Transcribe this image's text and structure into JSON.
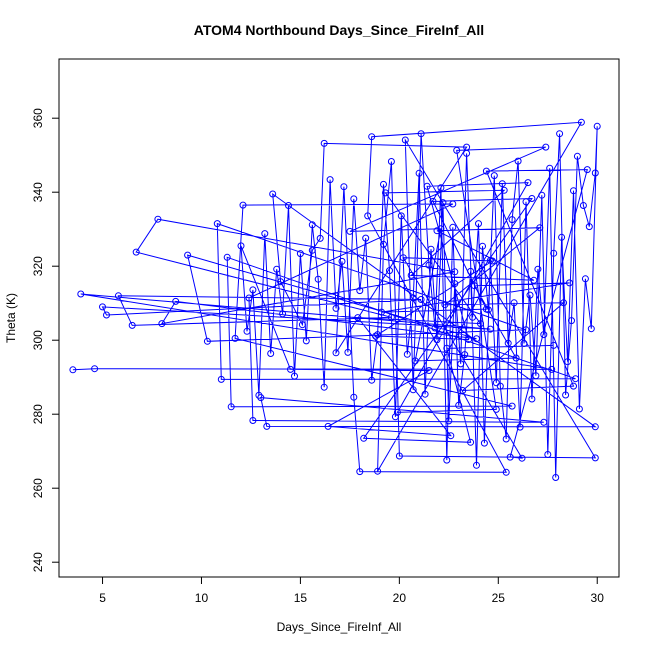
{
  "chart_data": {
    "type": "scatter",
    "style": "points-connected-by-lines",
    "title": "ATOM4 Northbound Days_Since_FireInf_All",
    "xlabel": "Days_Since_FireInf_All",
    "ylabel": "Theta (K)",
    "xlim": [
      2.8,
      31.1
    ],
    "ylim": [
      236,
      376
    ],
    "xticks": [
      5,
      10,
      15,
      20,
      25,
      30
    ],
    "yticks": [
      240,
      260,
      280,
      300,
      320,
      340,
      360
    ],
    "grid": false,
    "legend": "none",
    "colors": {
      "series": "#0000ff",
      "axis": "#000000"
    },
    "series": [
      {
        "points": [
          [
            3.5,
            292
          ],
          [
            4.6,
            292.3
          ],
          [
            27.7,
            292.1
          ],
          [
            3.9,
            312.5
          ],
          [
            24.6,
            303
          ],
          [
            5.0,
            309
          ],
          [
            5.2,
            306.8
          ],
          [
            21.1,
            311
          ],
          [
            5.8,
            312
          ],
          [
            6.5,
            304
          ],
          [
            19.6,
            306.2
          ],
          [
            6.7,
            323.8
          ],
          [
            7.8,
            332.7
          ],
          [
            22.8,
            318.5
          ],
          [
            8.0,
            304.5
          ],
          [
            8.7,
            310.5
          ],
          [
            23.9,
            300.4
          ],
          [
            9.3,
            323
          ],
          [
            10.3,
            299.7
          ],
          [
            26.4,
            302.8
          ],
          [
            10.8,
            331.5
          ],
          [
            11.0,
            289.4
          ],
          [
            28.9,
            289.6
          ],
          [
            11.3,
            322.4
          ],
          [
            11.5,
            282
          ],
          [
            25.7,
            282.2
          ],
          [
            11.7,
            300.5
          ],
          [
            12.1,
            336.5
          ],
          [
            22.7,
            336.8
          ],
          [
            12.4,
            311.4
          ],
          [
            12.6,
            278.3
          ],
          [
            27.3,
            277.8
          ],
          [
            13.0,
            284.5
          ],
          [
            13.3,
            276.7
          ],
          [
            29.9,
            276.6
          ],
          [
            13.6,
            339.5
          ],
          [
            14.0,
            315.8
          ],
          [
            15.1,
            304.2
          ],
          [
            15.6,
            324.3
          ],
          [
            16.0,
            327.5
          ],
          [
            16.2,
            353.2
          ],
          [
            23.4,
            352.2
          ],
          [
            16.8,
            296.6
          ],
          [
            17.2,
            341.5
          ],
          [
            17.7,
            284.6
          ],
          [
            18.0,
            264.5
          ],
          [
            25.4,
            264.3
          ],
          [
            18.4,
            333.6
          ],
          [
            18.6,
            355
          ],
          [
            29.2,
            358.9
          ],
          [
            18.9,
            264.6
          ],
          [
            19.2,
            325.9
          ],
          [
            19.6,
            348.3
          ],
          [
            20.0,
            268.7
          ],
          [
            29.9,
            268.2
          ],
          [
            20.3,
            354.1
          ],
          [
            20.7,
            286.6
          ],
          [
            21.1,
            355.8
          ],
          [
            21.5,
            320.3
          ],
          [
            21.8,
            303.3
          ],
          [
            22.1,
            341.2
          ],
          [
            22.4,
            267.6
          ],
          [
            22.7,
            330.5
          ],
          [
            23.0,
            282.4
          ],
          [
            23.3,
            296.1
          ],
          [
            23.6,
            318.6
          ],
          [
            23.9,
            266.2
          ],
          [
            24.2,
            325.4
          ],
          [
            24.5,
            308.2
          ],
          [
            24.8,
            344.5
          ],
          [
            25.1,
            287.6
          ],
          [
            25.4,
            273.3
          ],
          [
            25.7,
            332.6
          ],
          [
            26.0,
            348.4
          ],
          [
            26.3,
            299.1
          ],
          [
            26.6,
            312.2
          ],
          [
            26.9,
            290.4
          ],
          [
            27.2,
            339.2
          ],
          [
            27.5,
            269.1
          ],
          [
            27.8,
            323.5
          ],
          [
            28.1,
            355.8
          ],
          [
            28.4,
            285.2
          ],
          [
            28.7,
            305.3
          ],
          [
            29.0,
            349.7
          ],
          [
            29.3,
            336.4
          ],
          [
            29.6,
            330.7
          ],
          [
            29.9,
            345.2
          ],
          [
            30.0,
            357.8
          ],
          [
            29.7,
            303.1
          ],
          [
            29.4,
            316.6
          ],
          [
            29.1,
            281.4
          ],
          [
            28.8,
            340.4
          ],
          [
            28.5,
            294.2
          ],
          [
            28.2,
            327.8
          ],
          [
            27.9,
            262.9
          ],
          [
            27.6,
            346.5
          ],
          [
            27.3,
            301.5
          ],
          [
            27.0,
            319.2
          ],
          [
            26.7,
            284.1
          ],
          [
            26.4,
            337.4
          ],
          [
            26.1,
            276.5
          ],
          [
            25.8,
            310.1
          ],
          [
            25.5,
            299.2
          ],
          [
            25.2,
            342.3
          ],
          [
            24.9,
            288.5
          ],
          [
            24.6,
            321.6
          ],
          [
            24.3,
            272.2
          ],
          [
            24.0,
            331.5
          ],
          [
            23.7,
            306.2
          ],
          [
            23.4,
            350.5
          ],
          [
            23.1,
            293.6
          ],
          [
            22.8,
            315.3
          ],
          [
            22.5,
            278.2
          ],
          [
            22.2,
            337.2
          ],
          [
            21.9,
            300.1
          ],
          [
            21.6,
            324.6
          ],
          [
            21.3,
            285.4
          ],
          [
            21.0,
            345.1
          ],
          [
            20.7,
            311.4
          ],
          [
            20.4,
            296.2
          ],
          [
            20.1,
            333.6
          ],
          [
            19.8,
            279.3
          ],
          [
            19.5,
            318.8
          ],
          [
            19.2,
            342.1
          ],
          [
            18.9,
            301.5
          ],
          [
            18.6,
            289.2
          ],
          [
            18.3,
            327.6
          ],
          [
            18.0,
            313.4
          ],
          [
            17.7,
            338.2
          ],
          [
            17.4,
            296.7
          ],
          [
            17.1,
            321.3
          ],
          [
            16.8,
            308.6
          ],
          [
            16.5,
            343.4
          ],
          [
            16.2,
            287.3
          ],
          [
            15.9,
            316.5
          ],
          [
            15.6,
            331.2
          ],
          [
            15.3,
            299.8
          ],
          [
            15.0,
            323.4
          ],
          [
            14.7,
            290.3
          ],
          [
            14.4,
            336.4
          ],
          [
            14.1,
            307.1
          ],
          [
            13.8,
            319.2
          ],
          [
            13.5,
            296.4
          ],
          [
            13.2,
            328.8
          ],
          [
            12.9,
            285.1
          ],
          [
            12.6,
            313.6
          ],
          [
            12.3,
            302.4
          ],
          [
            12.0,
            325.5
          ],
          [
            14.5,
            292.1
          ],
          [
            21.5,
            291.8
          ],
          [
            16.4,
            276.7
          ],
          [
            22.6,
            274.2
          ],
          [
            17.9,
            306.1
          ],
          [
            24.1,
            304.5
          ],
          [
            19.3,
            339.8
          ],
          [
            25.3,
            340.5
          ],
          [
            20.6,
            317.5
          ],
          [
            26.8,
            316.2
          ],
          [
            21.9,
            329.6
          ],
          [
            27.1,
            330.4
          ],
          [
            22.3,
            309.6
          ],
          [
            28.3,
            310.1
          ],
          [
            23.2,
            286.4
          ],
          [
            28.8,
            287.6
          ],
          [
            24.4,
            345.7
          ],
          [
            29.5,
            346.1
          ],
          [
            25.6,
            268.4
          ],
          [
            26.2,
            268.1
          ],
          [
            20.2,
            322.3
          ],
          [
            24.7,
            321.4
          ],
          [
            18.8,
            301.1
          ],
          [
            23.5,
            300.2
          ],
          [
            21.4,
            341.6
          ],
          [
            26.5,
            342.6
          ],
          [
            19.9,
            280.5
          ],
          [
            24.9,
            281.3
          ],
          [
            22.9,
            351.3
          ],
          [
            27.4,
            352.2
          ],
          [
            17.5,
            329.4
          ],
          [
            22.1,
            330.1
          ],
          [
            20.8,
            294.4
          ],
          [
            25.9,
            295.2
          ],
          [
            23.8,
            314.7
          ],
          [
            28.6,
            315.5
          ],
          [
            19.1,
            307.6
          ],
          [
            24.4,
            308.4
          ],
          [
            21.7,
            337.5
          ],
          [
            26.7,
            338.3
          ],
          [
            18.2,
            273.5
          ],
          [
            23.6,
            272.4
          ],
          [
            22.4,
            297.8
          ],
          [
            27.8,
            298.6
          ]
        ]
      }
    ]
  }
}
